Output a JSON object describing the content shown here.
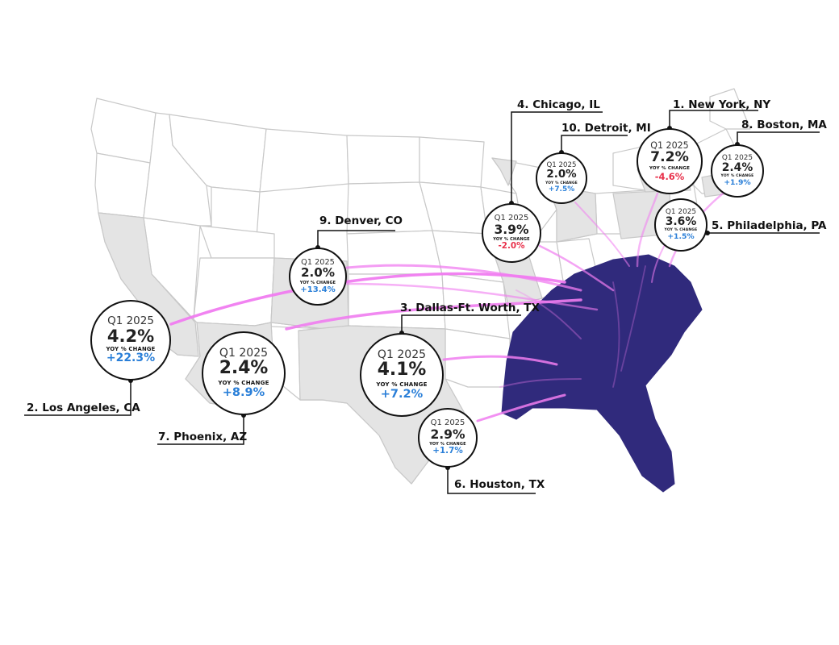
{
  "colors": {
    "state_fill": "#ffffff",
    "state_border": "#c8c8c8",
    "highlight_fill": "#e4e4e4",
    "southeast_fill": "#302a7c",
    "arc_color": "#f07cf0",
    "positive_change": "#2a7fd8",
    "negative_change": "#e8304a",
    "leader_line": "#111111"
  },
  "stat_header": "Q1 2025",
  "change_header": "YOY % CHANGE",
  "markets": [
    {
      "rank_label": "1. New York, NY",
      "q1_2025": "7.2%",
      "yoy_change": "-4.6%",
      "trend": "negative"
    },
    {
      "rank_label": "2. Los Angeles, CA",
      "q1_2025": "4.2%",
      "yoy_change": "+22.3%",
      "trend": "positive"
    },
    {
      "rank_label": "3. Dallas-Ft. Worth, TX",
      "q1_2025": "4.1%",
      "yoy_change": "+7.2%",
      "trend": "positive"
    },
    {
      "rank_label": "4. Chicago, IL",
      "q1_2025": "3.9%",
      "yoy_change": "-2.0%",
      "trend": "negative"
    },
    {
      "rank_label": "5. Philadelphia, PA",
      "q1_2025": "3.6%",
      "yoy_change": "+1.5%",
      "trend": "positive"
    },
    {
      "rank_label": "6. Houston, TX",
      "q1_2025": "2.9%",
      "yoy_change": "+1.7%",
      "trend": "positive"
    },
    {
      "rank_label": "7. Phoenix, AZ",
      "q1_2025": "2.4%",
      "yoy_change": "+8.9%",
      "trend": "positive"
    },
    {
      "rank_label": "8. Boston, MA",
      "q1_2025": "2.4%",
      "yoy_change": "+1.9%",
      "trend": "positive"
    },
    {
      "rank_label": "9. Denver, CO",
      "q1_2025": "2.0%",
      "yoy_change": "+13.4%",
      "trend": "positive"
    },
    {
      "rank_label": "10. Detroit, MI",
      "q1_2025": "2.0%",
      "yoy_change": "+7.5%",
      "trend": "positive"
    }
  ]
}
